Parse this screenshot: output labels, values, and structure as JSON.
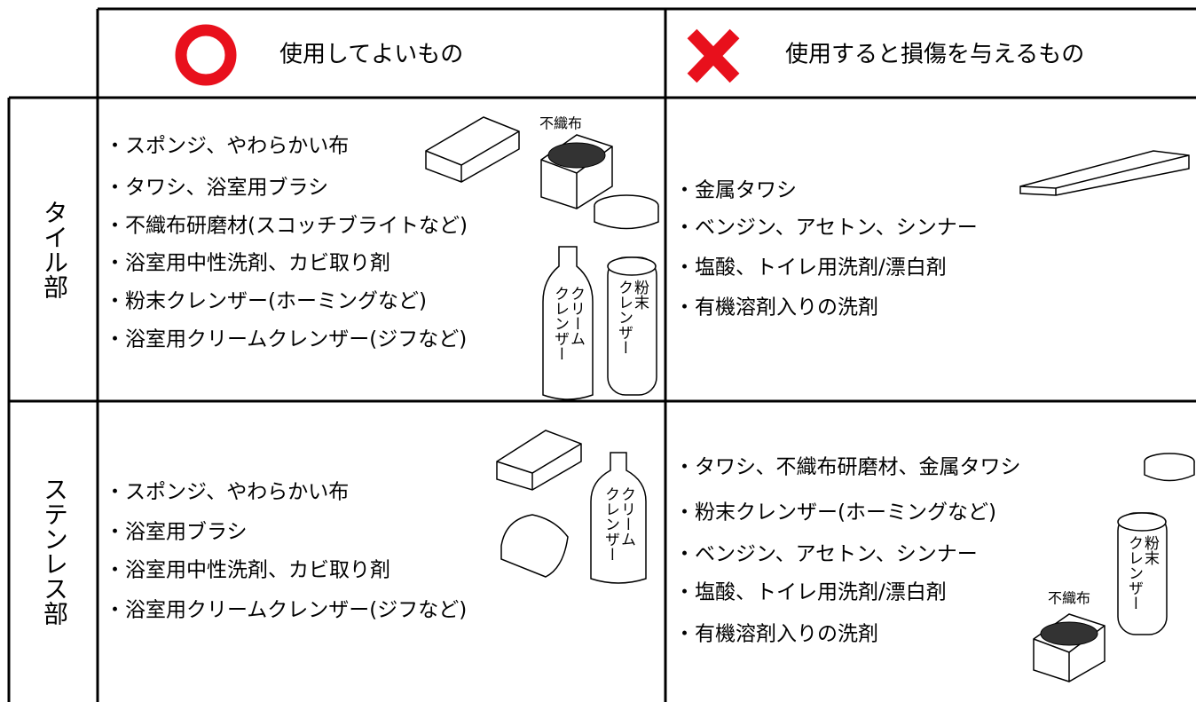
{
  "header": {
    "ok_label": "使用してよいもの",
    "ng_label": "使用すると損傷を与えるもの"
  },
  "rows": [
    {
      "label": "タイル部",
      "ok_items": [
        "・スポンジ、やわらかい布",
        "・タワシ、浴室用ブラシ",
        "・不織布研磨材(スコッチブライトなど)",
        "・浴室用中性洗剤、カビ取り剤",
        "・粉末クレンザー(ホーミングなど)",
        "・浴室用クリームクレンザー(ジフなど)"
      ],
      "ng_items": [
        "・金属タワシ",
        "・ベンジン、アセトン、シンナー",
        "・塩酸、トイレ用洗剤/漂白剤",
        "・有機溶剤入りの洗剤"
      ]
    },
    {
      "label": "ステンレス部",
      "ok_items": [
        "・スポンジ、やわらかい布",
        "・浴室用ブラシ",
        "・浴室用中性洗剤、カビ取り剤",
        "・浴室用クリームクレンザー(ジフなど)"
      ],
      "ng_items": [
        "・タワシ、不織布研磨材、金属タワシ",
        "・粉末クレンザー(ホーミングなど)",
        "・ベンジン、アセトン、シンナー",
        "・塩酸、トイレ用洗剤/漂白剤",
        "・有機溶剤入りの洗剤"
      ]
    }
  ],
  "illustrations": [
    [
      "不織布"
    ],
    [
      "クリーム",
      "クレンザー"
    ],
    [
      "粉末",
      "クレンザー"
    ],
    [
      "クリーム",
      "クレンザー"
    ],
    [
      "粉末",
      "クレンザー"
    ],
    [
      "不織布"
    ]
  ]
}
